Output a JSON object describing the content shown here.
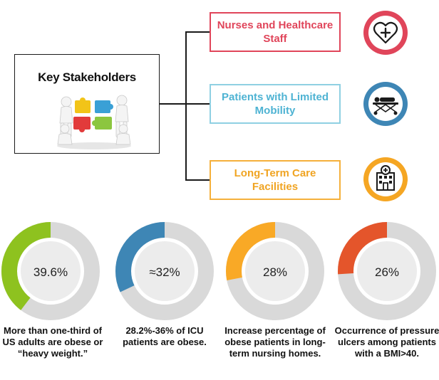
{
  "key_stakeholders": {
    "title": "Key Stakeholders"
  },
  "stakeholders": [
    {
      "label": "Nurses and Healthcare Staff",
      "icon": "heart-icon",
      "color": "#e0455a"
    },
    {
      "label": "Patients with Limited Mobility",
      "icon": "stretcher-icon",
      "color": "#4eb3d3"
    },
    {
      "label": "Long-Term Care Facilities",
      "icon": "hospital-icon",
      "color": "#f0a422"
    }
  ],
  "stats": [
    {
      "value": "39.6%",
      "fraction": 0.396,
      "color": "#8ec21f",
      "caption": "More than one-third of US adults are obese or “heavy weight.”"
    },
    {
      "value": "≈32%",
      "fraction": 0.32,
      "color": "#3e86b5",
      "caption": "28.2%-36% of ICU patients are obese."
    },
    {
      "value": "28%",
      "fraction": 0.28,
      "color": "#f9a926",
      "caption": "Increase percentage of obese patients in long-term nursing homes."
    },
    {
      "value": "26%",
      "fraction": 0.26,
      "color": "#e4552b",
      "caption": "Occurrence of pressure ulcers among patients with a BMI>40."
    }
  ],
  "donut_track_color": "#d9d9d9",
  "donut_inner_color": "#ececec"
}
